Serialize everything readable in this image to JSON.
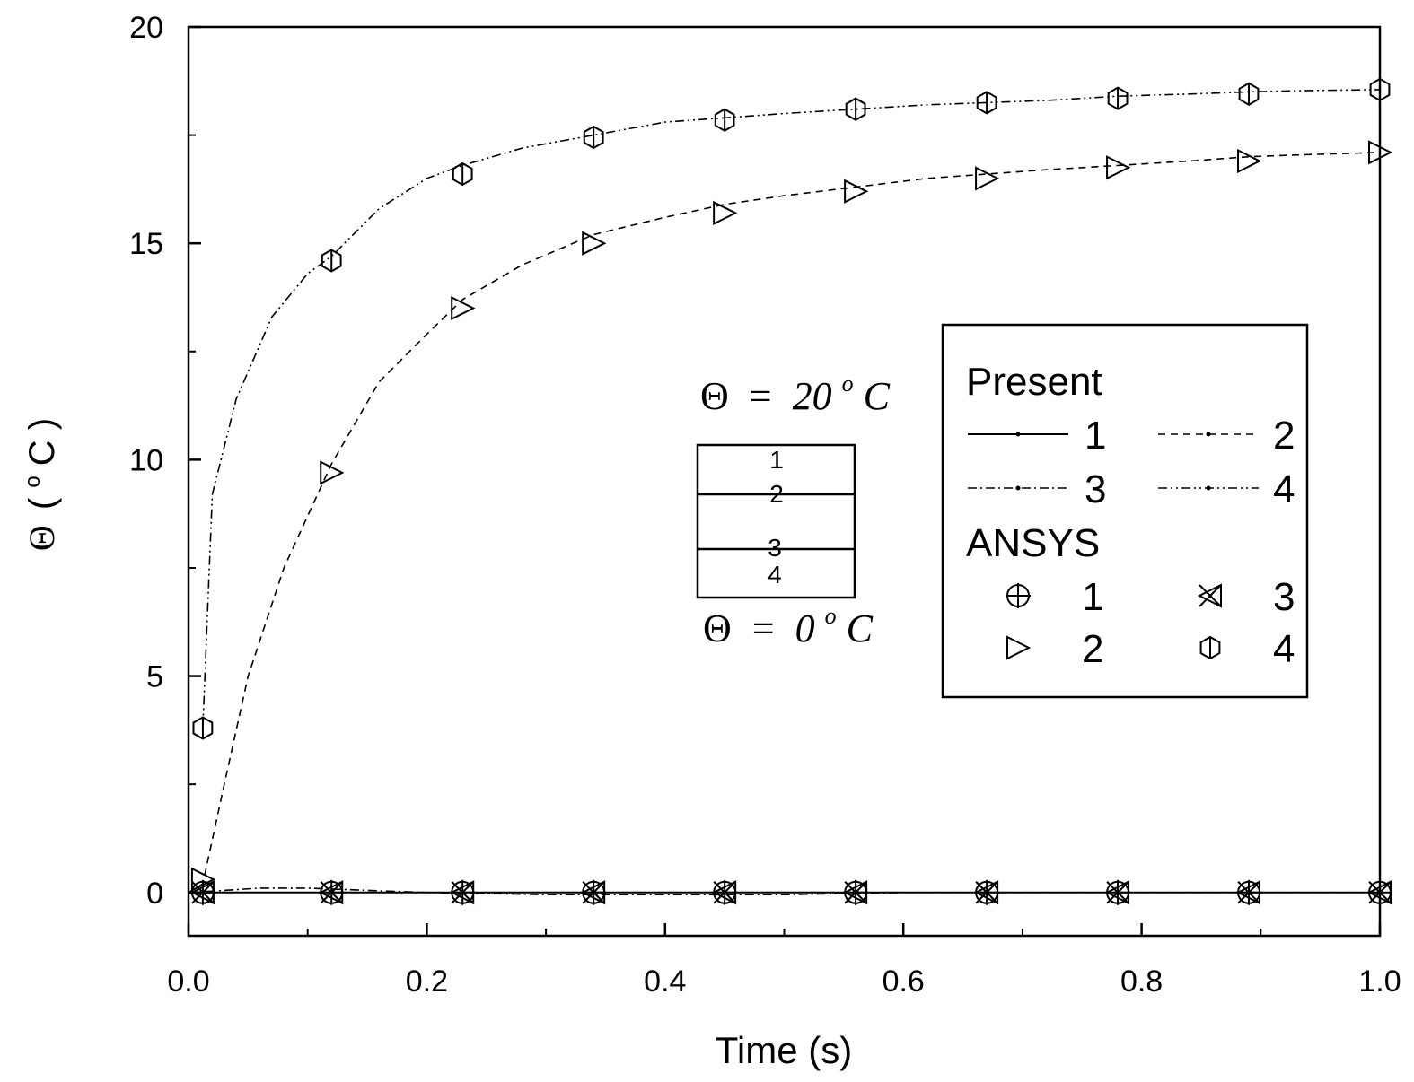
{
  "chart_data": {
    "type": "line",
    "title": "",
    "xlabel": "Time (s)",
    "ylabel_symbol": "Θ",
    "ylabel_degree": "o",
    "ylabel_unit": "C",
    "xlim": [
      0.0,
      1.0
    ],
    "ylim": [
      -1,
      20
    ],
    "x_ticks": [
      "0.0",
      "0.2",
      "0.4",
      "0.6",
      "0.8",
      "1.0"
    ],
    "y_ticks": [
      "0",
      "5",
      "10",
      "15",
      "20"
    ],
    "series": [
      {
        "legend_label": "1",
        "group": "Present",
        "line_style": "solid",
        "x": [
          0.0,
          0.02,
          0.06,
          0.12,
          0.2,
          0.3,
          0.4,
          0.5,
          0.6,
          0.7,
          0.8,
          0.9,
          1.0
        ],
        "y": [
          0.0,
          0.0,
          0.0,
          0.0,
          0.0,
          0.0,
          0.0,
          0.0,
          0.0,
          0.0,
          0.0,
          0.0,
          0.0
        ]
      },
      {
        "legend_label": "2",
        "group": "Present",
        "line_style": "dashed",
        "x": [
          0.0,
          0.012,
          0.03,
          0.05,
          0.08,
          0.12,
          0.16,
          0.2,
          0.23,
          0.28,
          0.34,
          0.4,
          0.45,
          0.5,
          0.56,
          0.62,
          0.67,
          0.72,
          0.78,
          0.84,
          0.89,
          0.94,
          1.0
        ],
        "y": [
          0.0,
          0.2,
          2.5,
          5.0,
          7.5,
          9.9,
          11.8,
          12.9,
          13.7,
          14.5,
          15.2,
          15.6,
          15.9,
          16.1,
          16.3,
          16.5,
          16.6,
          16.7,
          16.8,
          16.9,
          17.0,
          17.05,
          17.1
        ]
      },
      {
        "legend_label": "3",
        "group": "Present",
        "line_style": "dash-dot",
        "x": [
          0.0,
          0.03,
          0.06,
          0.1,
          0.15,
          0.2,
          0.3,
          0.4,
          0.5,
          0.6,
          0.7,
          0.8,
          0.9,
          1.0
        ],
        "y": [
          0.0,
          0.05,
          0.1,
          0.1,
          0.05,
          0.0,
          -0.05,
          -0.05,
          -0.05,
          0.0,
          0.0,
          0.0,
          0.0,
          0.0
        ]
      },
      {
        "legend_label": "4",
        "group": "Present",
        "line_style": "dash-dot-dot",
        "x": [
          0.012,
          0.02,
          0.04,
          0.07,
          0.1,
          0.12,
          0.16,
          0.2,
          0.23,
          0.28,
          0.34,
          0.4,
          0.45,
          0.5,
          0.56,
          0.62,
          0.67,
          0.72,
          0.78,
          0.84,
          0.89,
          0.94,
          1.0
        ],
        "y": [
          3.8,
          9.2,
          11.4,
          13.3,
          14.3,
          14.7,
          15.8,
          16.5,
          16.8,
          17.2,
          17.5,
          17.8,
          17.9,
          18.0,
          18.1,
          18.2,
          18.25,
          18.3,
          18.4,
          18.45,
          18.5,
          18.53,
          18.55
        ]
      }
    ],
    "ansys_series": [
      {
        "legend_label": "1",
        "marker": "circle-plus",
        "x": [
          0.012,
          0.12,
          0.23,
          0.34,
          0.45,
          0.56,
          0.67,
          0.78,
          0.89,
          1.0
        ],
        "y": [
          0.0,
          0.0,
          0.0,
          0.0,
          0.0,
          0.0,
          0.0,
          0.0,
          0.0,
          0.0
        ]
      },
      {
        "legend_label": "2",
        "marker": "triangle-right",
        "x": [
          0.012,
          0.12,
          0.23,
          0.34,
          0.45,
          0.56,
          0.67,
          0.78,
          0.89,
          1.0
        ],
        "y": [
          0.3,
          9.7,
          13.5,
          15.0,
          15.7,
          16.2,
          16.5,
          16.75,
          16.9,
          17.1
        ]
      },
      {
        "legend_label": "3",
        "marker": "x-triangle-left",
        "x": [
          0.012,
          0.12,
          0.23,
          0.34,
          0.45,
          0.56,
          0.67,
          0.78,
          0.89,
          1.0
        ],
        "y": [
          0.0,
          0.0,
          0.0,
          0.0,
          0.0,
          0.0,
          0.0,
          0.0,
          0.0,
          0.0
        ]
      },
      {
        "legend_label": "4",
        "marker": "hexagon",
        "x": [
          0.012,
          0.12,
          0.23,
          0.34,
          0.45,
          0.56,
          0.67,
          0.78,
          0.89,
          1.0
        ],
        "y": [
          3.8,
          14.6,
          16.6,
          17.45,
          17.85,
          18.1,
          18.25,
          18.35,
          18.45,
          18.55
        ]
      }
    ],
    "legend": {
      "placement": "right",
      "present_title": "Present",
      "ansys_title": "ANSYS"
    },
    "inset": {
      "top_symbol": "Θ",
      "top_equals": "=",
      "top_value": "20",
      "top_degree": "o",
      "top_unit": "C",
      "bottom_symbol": "Θ",
      "bottom_equals": "=",
      "bottom_value": "0",
      "bottom_degree": "o",
      "bottom_unit": "C",
      "layer_labels": [
        "1",
        "2",
        "3",
        "4"
      ]
    },
    "grid": false
  }
}
